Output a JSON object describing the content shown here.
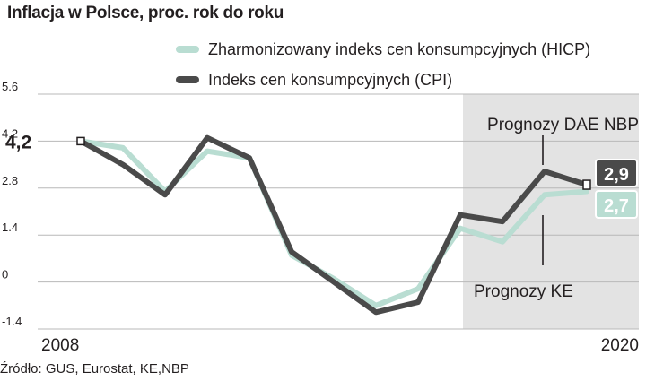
{
  "title": "Inflacja w Polsce, proc. rok do roku",
  "source": "Źródło: GUS, Eurostat, KE,NBP",
  "colors": {
    "cpi": "#4a4a4a",
    "hicp": "#b9ddd2",
    "forecast_band": "#e3e3e3",
    "grid": "#b8b8b8",
    "end_box_border": "#231f20"
  },
  "chart_data": {
    "type": "line",
    "x": [
      2008,
      2009,
      2010,
      2011,
      2012,
      2013,
      2014,
      2015,
      2016,
      2017,
      2018,
      2019,
      2020
    ],
    "series": [
      {
        "name": "Zharmonizowany indeks cen konsumpcyjnych (HICP)",
        "key": "hicp",
        "values": [
          4.2,
          4.0,
          2.7,
          3.9,
          3.7,
          0.8,
          0.1,
          -0.7,
          -0.2,
          1.6,
          1.2,
          2.6,
          2.7
        ]
      },
      {
        "name": "Indeks cen konsumpcyjnych (CPI)",
        "key": "cpi",
        "values": [
          4.2,
          3.5,
          2.6,
          4.3,
          3.7,
          0.9,
          0.0,
          -0.9,
          -0.6,
          2.0,
          1.8,
          3.3,
          2.9
        ]
      }
    ],
    "xlim": [
      2008,
      2020
    ],
    "ylim": [
      -1.4,
      5.6
    ],
    "yticks": [
      "5.6",
      "4.2",
      "2.8",
      "1.4",
      "0",
      "-1.4"
    ],
    "xlabels": [
      "2008",
      "2020"
    ],
    "grid": true,
    "forecast_start": 2017,
    "annotations": {
      "forecast_nbp": "Prognozy DAE NBP",
      "forecast_ke": "Prognozy KE",
      "start_value": "4,2",
      "end_cpi": "2,9",
      "end_hicp": "2,7"
    }
  }
}
